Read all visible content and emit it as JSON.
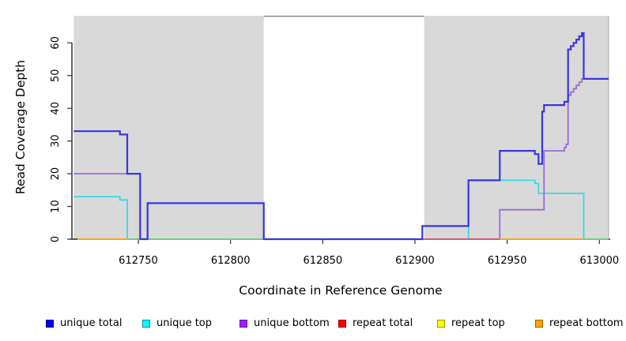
{
  "chart_data": {
    "type": "line",
    "subtype": "step-coverage-plot",
    "title": "",
    "xlabel": "Coordinate in Reference Genome",
    "ylabel": "Read Coverage Depth",
    "xlim": [
      612715,
      613005
    ],
    "ylim": [
      0,
      68
    ],
    "x_ticks": [
      612750,
      612800,
      612850,
      612900,
      612950,
      613000
    ],
    "y_ticks": [
      0,
      10,
      20,
      30,
      40,
      50,
      60
    ],
    "grid": false,
    "legend_position": "bottom",
    "background_regions": [
      {
        "name": "left-shaded-region",
        "from": 612715,
        "to": 612818,
        "color": "#d9d9d9"
      },
      {
        "name": "right-shaded-region",
        "from": 612905,
        "to": 613005,
        "color": "#d9d9d9"
      }
    ],
    "gap_top_border": {
      "from": 612818,
      "to": 612905,
      "color": "#808080"
    },
    "series": [
      {
        "name": "unique top",
        "color": "#35d9e6",
        "width": 1.8,
        "steps": [
          [
            612715,
            13
          ],
          [
            612740,
            12
          ],
          [
            612744,
            0
          ],
          [
            612929,
            18
          ],
          [
            612965,
            17
          ],
          [
            612967,
            14
          ],
          [
            612991.5,
            0
          ]
        ],
        "end": 613005
      },
      {
        "name": "unique bottom",
        "color": "#9a6bd8",
        "width": 1.8,
        "steps": [
          [
            612715,
            20
          ],
          [
            612751,
            0
          ],
          [
            612755,
            11
          ],
          [
            612818,
            0
          ],
          [
            612946,
            9
          ],
          [
            612970,
            27
          ],
          [
            612981,
            28
          ],
          [
            612982,
            29
          ],
          [
            612983,
            44
          ],
          [
            612984.5,
            45
          ],
          [
            612986,
            46
          ],
          [
            612987.5,
            47
          ],
          [
            612989,
            48
          ],
          [
            612990.5,
            49
          ]
        ],
        "end": 613005
      },
      {
        "name": "overlap of unique top and repeat top at zero",
        "color": "#74c97c",
        "width": 1.8,
        "segments_at_zero": [
          [
            612744,
            612818
          ],
          [
            612991.5,
            613005
          ]
        ]
      },
      {
        "name": "repeat total",
        "color": "#e0506e",
        "width": 1.8,
        "segments_at_zero": [
          [
            612905,
            612946
          ]
        ]
      },
      {
        "name": "repeat top",
        "color": "#ffff00",
        "width": 1.8,
        "segments_at_zero": []
      },
      {
        "name": "repeat bottom",
        "color": "#ffa020",
        "width": 2,
        "segments_at_zero": [
          [
            612717,
            612744
          ],
          [
            612946,
            612991.5
          ]
        ]
      },
      {
        "name": "unique total",
        "color": "#3a35e0",
        "width": 2.2,
        "steps": [
          [
            612715,
            33
          ],
          [
            612740,
            32
          ],
          [
            612744,
            20
          ],
          [
            612751,
            0
          ],
          [
            612755,
            11
          ],
          [
            612818,
            0
          ],
          [
            612904,
            4
          ],
          [
            612929,
            18
          ],
          [
            612946,
            27
          ],
          [
            612965,
            26
          ],
          [
            612967,
            23
          ],
          [
            612969,
            39
          ],
          [
            612970,
            41
          ],
          [
            612981,
            42
          ],
          [
            612983,
            58
          ],
          [
            612984.5,
            59
          ],
          [
            612986,
            60
          ],
          [
            612987.5,
            61
          ],
          [
            612989,
            62
          ],
          [
            612990.5,
            63
          ],
          [
            612991.5,
            49
          ]
        ],
        "end": 613005
      }
    ],
    "legend": [
      {
        "label": "unique total",
        "fill": "#0000ee",
        "border": "#000099"
      },
      {
        "label": "unique top",
        "fill": "#00ffff",
        "border": "#008b9b"
      },
      {
        "label": "unique bottom",
        "fill": "#a020f0",
        "border": "#6a0dad"
      },
      {
        "label": "repeat total",
        "fill": "#ff0000",
        "border": "#990000"
      },
      {
        "label": "repeat top",
        "fill": "#ffff00",
        "border": "#9b9b00"
      },
      {
        "label": "repeat bottom",
        "fill": "#ffa500",
        "border": "#9b6400"
      }
    ]
  }
}
